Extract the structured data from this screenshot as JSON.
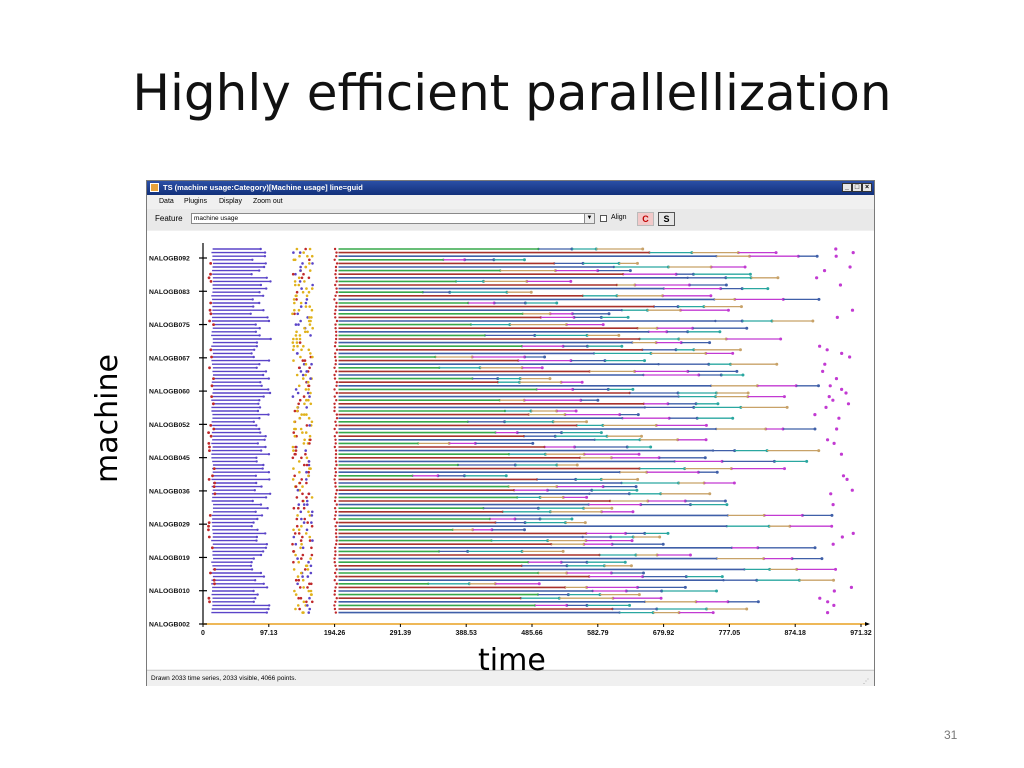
{
  "slide": {
    "title": "Highly efficient parallellization",
    "page_number": "31"
  },
  "window": {
    "title": "TS (machine usage:Category)[Machine usage] line=guid",
    "controls": [
      "_",
      "□",
      "×"
    ]
  },
  "menu": [
    "Data",
    "Plugins",
    "Display",
    "Zoom out"
  ],
  "feature_bar": {
    "label": "Feature",
    "selected_value": "machine usage",
    "align_label": "Align",
    "align_checked": false,
    "c_label": "C",
    "s_label": "S"
  },
  "status_bar": {
    "text": "Drawn 2033 time series, 2033 visible, 4066 points."
  },
  "axis_labels": {
    "y": "machine",
    "x": "time"
  },
  "colors": {
    "blue_purple": "#5a44c8",
    "gold": "#e0b21c",
    "red": "#c0282a",
    "green": "#36a84a",
    "dark_red": "#a8322c",
    "steel_blue": "#3f5fa8",
    "teal": "#2aa7a0",
    "tan": "#c8a268",
    "magenta": "#c23ad2",
    "orange_axis": "#e8a020"
  },
  "chart_data": {
    "type": "timeline",
    "x_ticks": [
      "0",
      "97.13",
      "194.26",
      "291.39",
      "388.53",
      "485.66",
      "582.79",
      "679.92",
      "777.05",
      "874.18",
      "971.32"
    ],
    "y_ticks": [
      "NALOGB092",
      "NALOGB083",
      "NALOGB075",
      "NALOGB067",
      "NALOGB060",
      "NALOGB052",
      "NALOGB045",
      "NALOGB036",
      "NALOGB029",
      "NALOGB019",
      "NALOGB010",
      "NALOGB002"
    ],
    "xlim": [
      0,
      971.32
    ],
    "series_total": 2033,
    "series_visible": 2033,
    "points": 4066
  }
}
